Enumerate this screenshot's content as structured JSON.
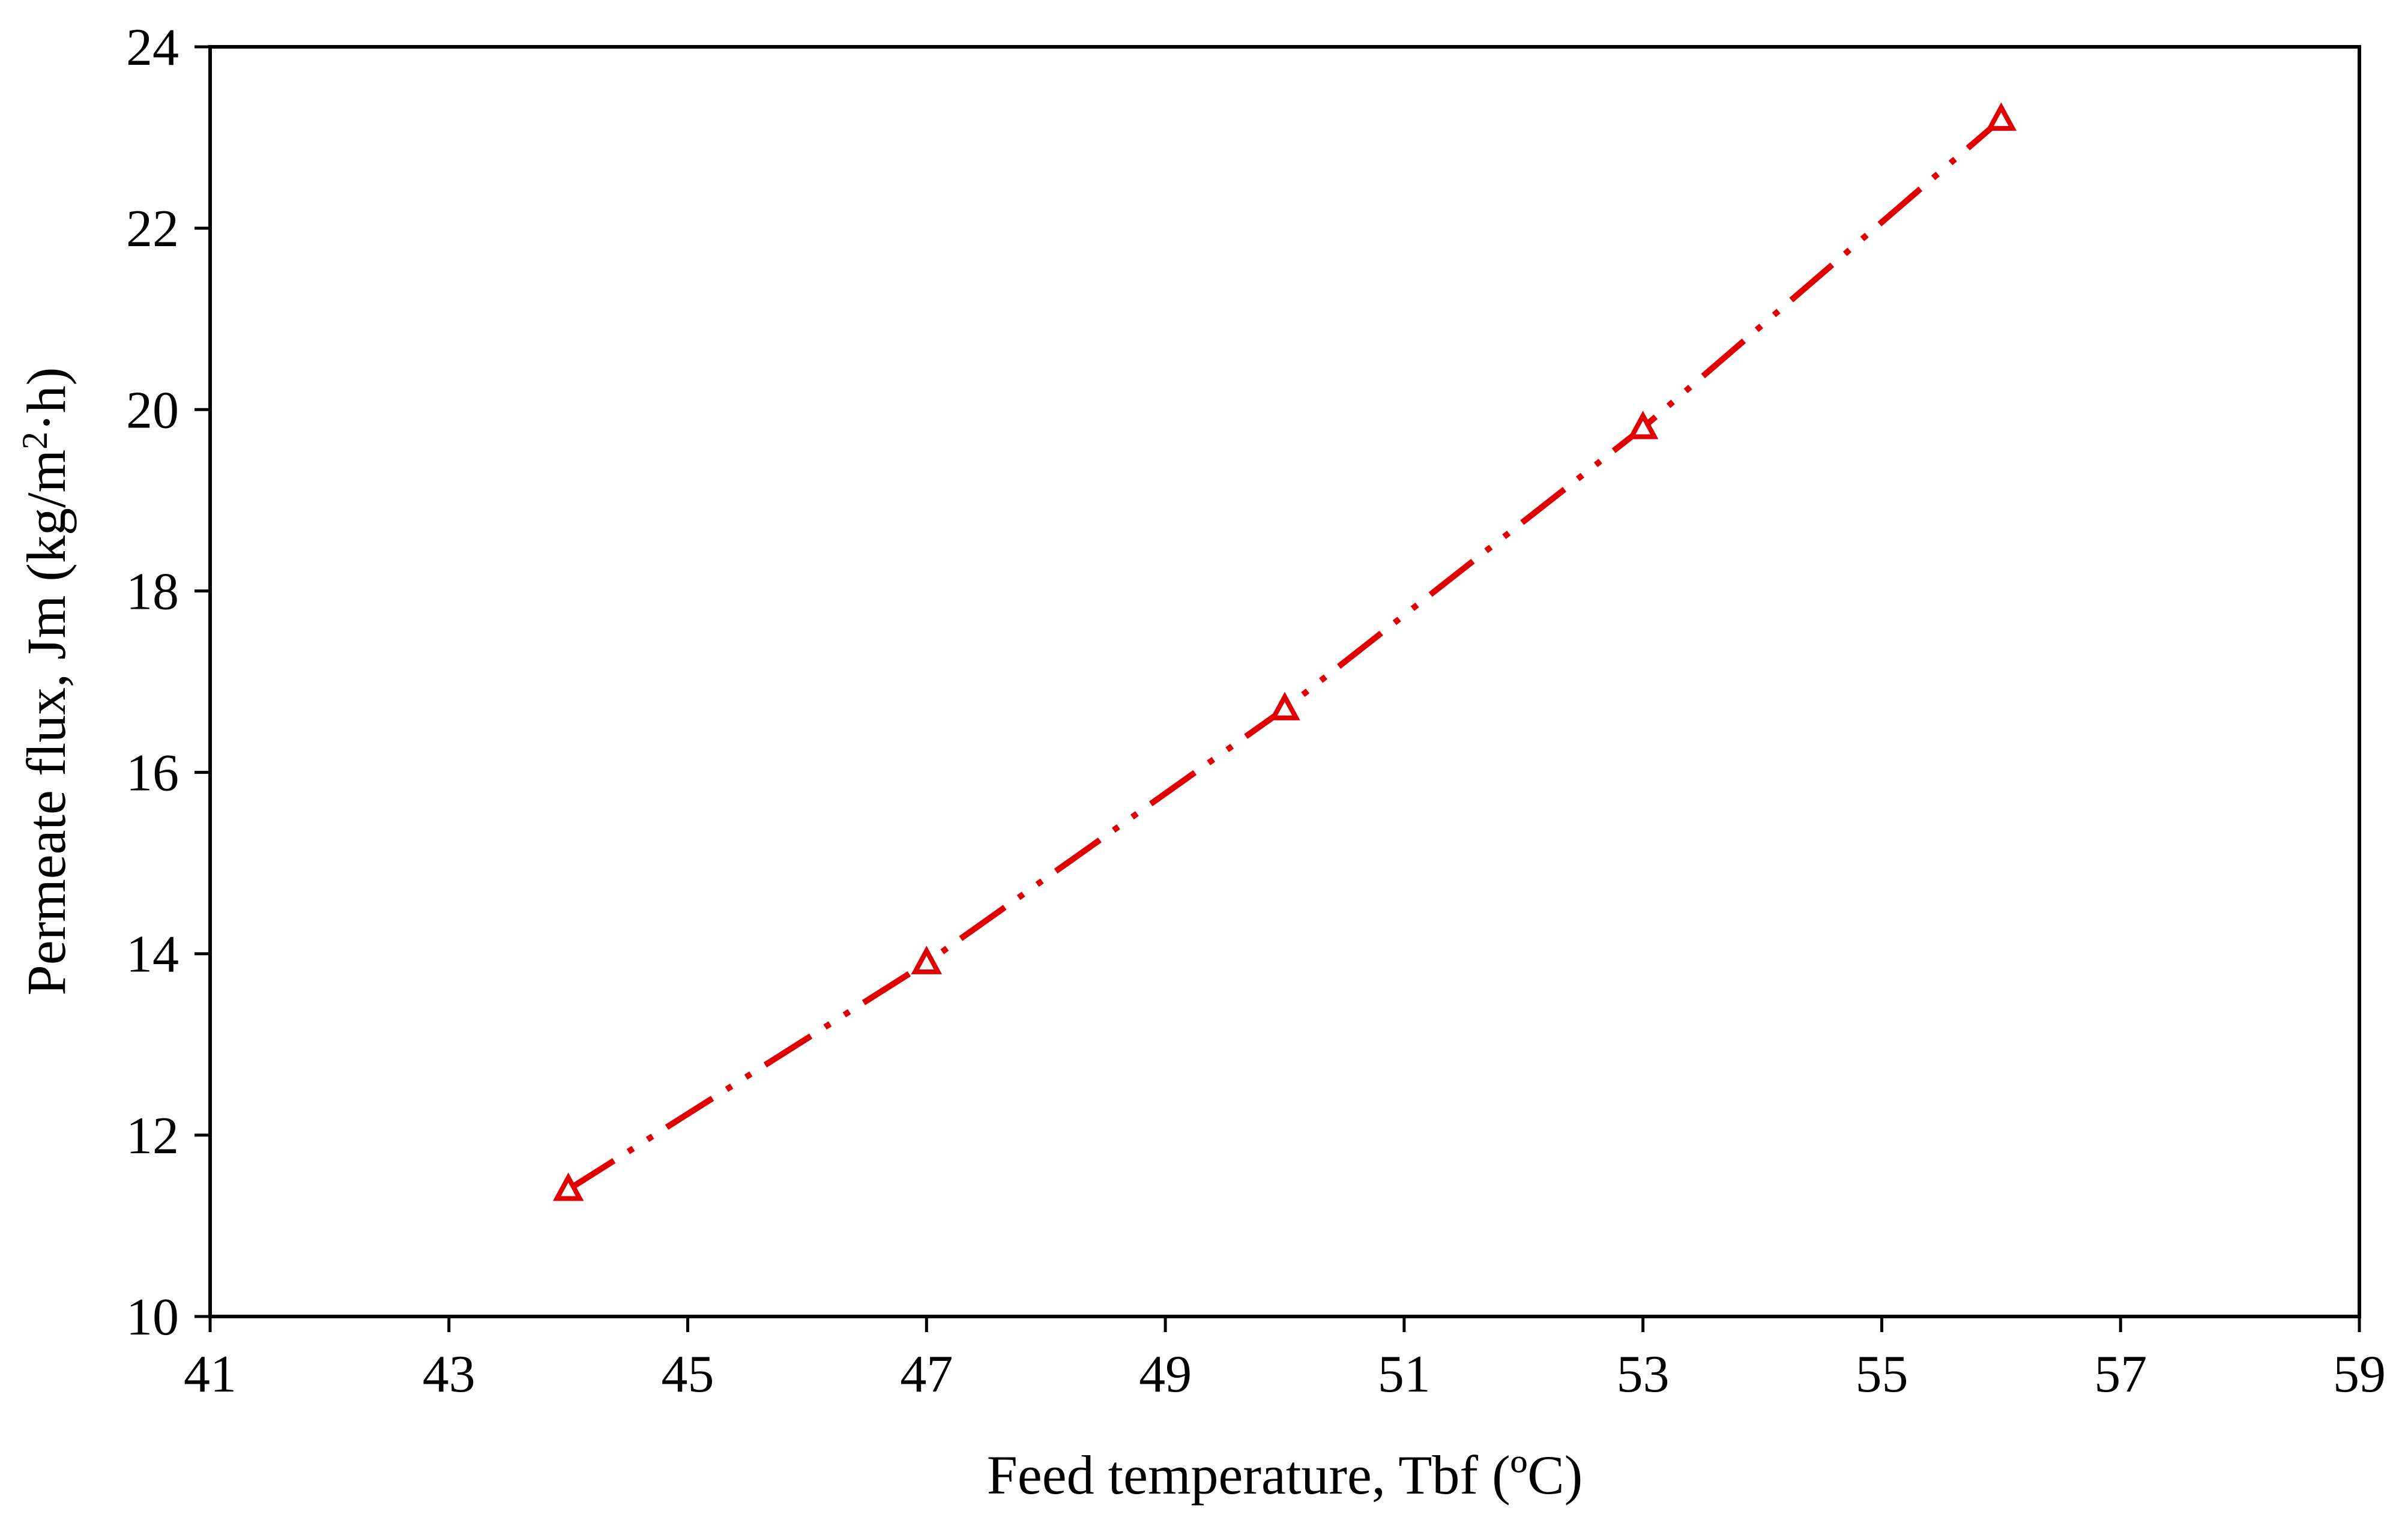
{
  "chart_data": {
    "type": "line",
    "xlabel": "Feed temperature, Tbf  (ºC)",
    "ylabel": {
      "prefix": "Permeate flux, Jm (kg/m",
      "superscript": "2",
      "suffix": "·h)"
    },
    "xlim": [
      41,
      59
    ],
    "ylim": [
      10,
      24
    ],
    "x_ticks": [
      "41",
      "43",
      "45",
      "47",
      "49",
      "51",
      "53",
      "55",
      "57",
      "59"
    ],
    "y_ticks": [
      "10",
      "12",
      "14",
      "16",
      "18",
      "20",
      "22",
      "24"
    ],
    "grid": false,
    "series": [
      {
        "x": [
          44,
          47,
          50,
          53,
          56
        ],
        "y": [
          11.4,
          13.9,
          16.7,
          19.8,
          23.2
        ],
        "color": "#e00000",
        "marker": "open-triangle",
        "line_style": "long-dash-dot-dot"
      }
    ]
  }
}
